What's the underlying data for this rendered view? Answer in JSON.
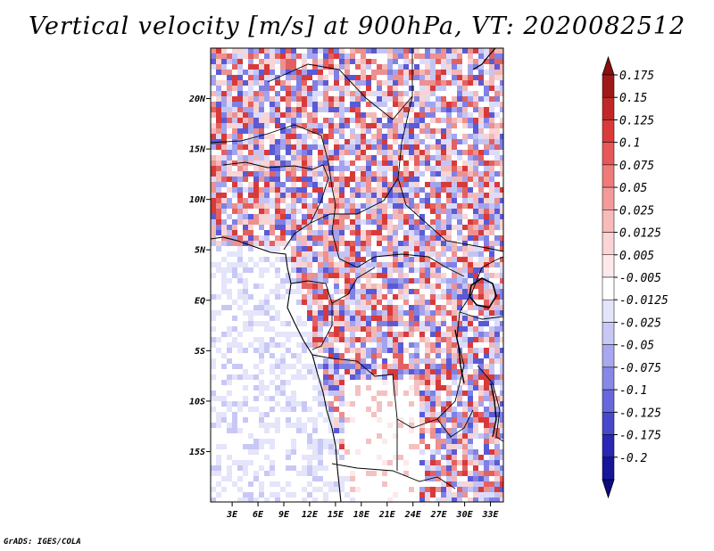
{
  "title": "Vertical velocity [m/s] at 900hPa, VT: 2020082512",
  "credit": "GrADS: IGES/COLA",
  "map": {
    "lon_range": [
      0.5,
      34.5
    ],
    "lat_range": [
      -20,
      25
    ],
    "lon_ticks": [
      {
        "value": 3,
        "label": "3E"
      },
      {
        "value": 6,
        "label": "6E"
      },
      {
        "value": 9,
        "label": "9E"
      },
      {
        "value": 12,
        "label": "12E"
      },
      {
        "value": 15,
        "label": "15E"
      },
      {
        "value": 18,
        "label": "18E"
      },
      {
        "value": 21,
        "label": "21E"
      },
      {
        "value": 24,
        "label": "24E"
      },
      {
        "value": 27,
        "label": "27E"
      },
      {
        "value": 30,
        "label": "30E"
      },
      {
        "value": 33,
        "label": "33E"
      }
    ],
    "lat_ticks": [
      {
        "value": 20,
        "label": "20N"
      },
      {
        "value": 15,
        "label": "15N"
      },
      {
        "value": 10,
        "label": "10N"
      },
      {
        "value": 5,
        "label": "5N"
      },
      {
        "value": 0,
        "label": "EQ"
      },
      {
        "value": -5,
        "label": "5S"
      },
      {
        "value": -10,
        "label": "10S"
      },
      {
        "value": -15,
        "label": "15S"
      }
    ]
  },
  "colorbar": {
    "levels": [
      {
        "label": "0.175",
        "color": "#a01818"
      },
      {
        "label": "0.15",
        "color": "#c02828"
      },
      {
        "label": "0.125",
        "color": "#dc3a3a"
      },
      {
        "label": "0.1",
        "color": "#e85858"
      },
      {
        "label": "0.075",
        "color": "#f07a7a"
      },
      {
        "label": "0.05",
        "color": "#f59a9a"
      },
      {
        "label": "0.025",
        "color": "#f9baba"
      },
      {
        "label": "0.0125",
        "color": "#fcd4d4"
      },
      {
        "label": "0.005",
        "color": "#fde9e9"
      },
      {
        "label": "-0.005",
        "color": "#ffffff"
      },
      {
        "label": "-0.0125",
        "color": "#e4e4fb"
      },
      {
        "label": "-0.025",
        "color": "#c8c8f6"
      },
      {
        "label": "-0.05",
        "color": "#a8a8f0"
      },
      {
        "label": "-0.075",
        "color": "#8888e8"
      },
      {
        "label": "-0.1",
        "color": "#6868de"
      },
      {
        "label": "-0.125",
        "color": "#4848cc"
      },
      {
        "label": "-0.175",
        "color": "#2828b4"
      },
      {
        "label": "-0.2",
        "color": "#16169a"
      }
    ],
    "top_color": "#8a1010",
    "bottom_color": "#0c0c80"
  }
}
